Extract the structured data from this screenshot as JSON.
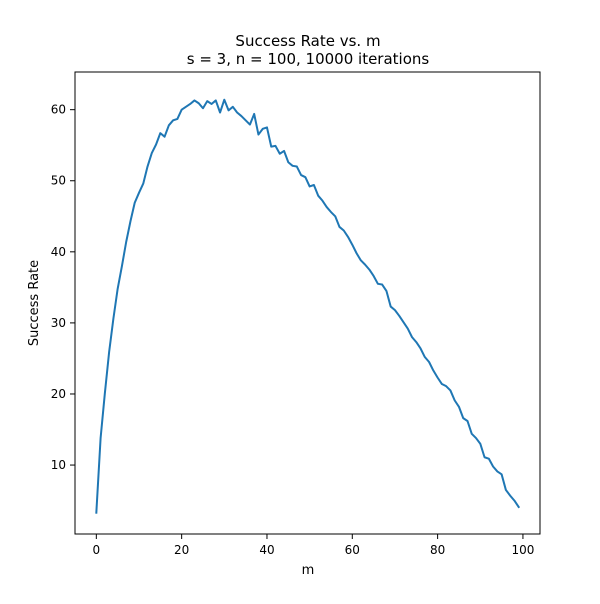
{
  "chart_data": {
    "type": "line",
    "title": "Success Rate vs. m",
    "subtitle": "s = 3, n = 100, 10000 iterations",
    "xlabel": "m",
    "ylabel": "Success Rate",
    "xlim": [
      -5,
      104
    ],
    "ylim": [
      0.3,
      65.3
    ],
    "xticks": [
      0,
      20,
      40,
      60,
      80,
      100
    ],
    "yticks": [
      10,
      20,
      30,
      40,
      50,
      60
    ],
    "grid": false,
    "line_color": "#1f77b4",
    "series": [
      {
        "x": [
          0,
          1,
          2,
          3,
          4,
          5,
          6,
          7,
          8,
          9,
          10,
          11,
          12,
          13,
          14,
          15,
          16,
          17,
          18,
          19,
          20,
          21,
          22,
          23,
          24,
          25,
          26,
          27,
          28,
          29,
          30,
          31,
          32,
          33,
          34,
          35,
          36,
          37,
          38,
          39,
          40,
          41,
          42,
          43,
          44,
          45,
          46,
          47,
          48,
          49,
          50,
          51,
          52,
          53,
          54,
          55,
          56,
          57,
          58,
          59,
          60,
          61,
          62,
          63,
          64,
          65,
          66,
          67,
          68,
          69,
          70,
          71,
          72,
          73,
          74,
          75,
          76,
          77,
          78,
          79,
          80,
          81,
          82,
          83,
          84,
          85,
          86,
          87,
          88,
          89,
          90,
          91,
          92,
          93,
          94,
          95,
          96,
          97,
          98,
          99
        ],
        "y": [
          3.3,
          13.8,
          20.1,
          25.9,
          30.6,
          34.8,
          38.0,
          41.4,
          44.3,
          46.9,
          48.3,
          49.6,
          52.0,
          53.9,
          55.1,
          56.7,
          56.2,
          57.8,
          58.5,
          58.7,
          60.0,
          60.4,
          60.8,
          61.3,
          60.9,
          60.2,
          61.2,
          60.8,
          61.3,
          59.6,
          61.4,
          59.9,
          60.4,
          59.6,
          59.1,
          58.5,
          57.9,
          59.4,
          56.5,
          57.3,
          57.5,
          54.8,
          54.9,
          53.8,
          54.2,
          52.6,
          52.1,
          52.0,
          50.8,
          50.5,
          49.2,
          49.4,
          47.9,
          47.2,
          46.3,
          45.6,
          45.0,
          43.5,
          43.0,
          42.1,
          41.0,
          39.8,
          38.8,
          38.2,
          37.5,
          36.6,
          35.5,
          35.4,
          34.5,
          32.3,
          31.8,
          31.0,
          30.1,
          29.2,
          28.0,
          27.3,
          26.4,
          25.2,
          24.5,
          23.3,
          22.3,
          21.4,
          21.1,
          20.5,
          19.1,
          18.2,
          16.6,
          16.2,
          14.4,
          13.8,
          13.0,
          11.1,
          10.9,
          9.8,
          9.1,
          8.7,
          6.5,
          5.7,
          5.0,
          4.1
        ]
      }
    ]
  }
}
